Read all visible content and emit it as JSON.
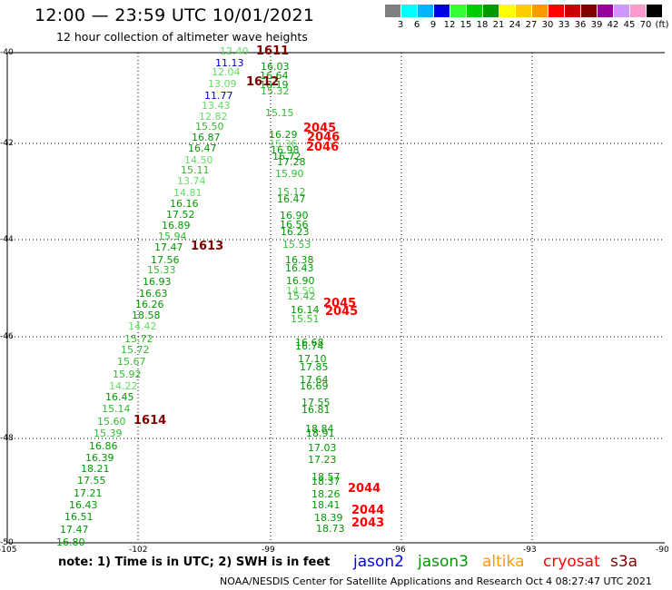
{
  "title": "12:00 — 23:59 UTC 10/01/2021",
  "subtitle": "12 hour collection of altimeter wave heights",
  "scale": {
    "colors": [
      "#808080",
      "#00ffff",
      "#00b4ff",
      "#0000e6",
      "#33ff33",
      "#00cc00",
      "#009900",
      "#ffff00",
      "#ffcc00",
      "#ff9900",
      "#ff0000",
      "#cc0000",
      "#800000",
      "#990099",
      "#cc99ff",
      "#ff99cc",
      "#000000"
    ],
    "labels": [
      "3",
      "6",
      "9",
      "12",
      "15",
      "18",
      "21",
      "24",
      "27",
      "30",
      "33",
      "36",
      "39",
      "42",
      "45",
      "70",
      "(ft)"
    ]
  },
  "grid": {
    "lat_labels": [
      "-40",
      "-42",
      "-44",
      "-46",
      "-48",
      "-50"
    ],
    "lon_labels": [
      "-105",
      "-102",
      "-99",
      "-96",
      "-93",
      "-90"
    ]
  },
  "wave_heights": [
    {
      "v": "12.40",
      "c": "#66dd66"
    },
    {
      "v": "11.13",
      "c": "#0000cc"
    },
    {
      "v": "12.04",
      "c": "#66dd66"
    },
    {
      "v": "13.09",
      "c": "#66dd66"
    },
    {
      "v": "11.77",
      "c": "#0000cc"
    },
    {
      "v": "13.43",
      "c": "#66dd66"
    },
    {
      "v": "12.82",
      "c": "#66dd66"
    },
    {
      "v": "15.50",
      "c": "#33bb33"
    },
    {
      "v": "16.87",
      "c": "#009900"
    },
    {
      "v": "16.47",
      "c": "#009900"
    },
    {
      "v": "14.50",
      "c": "#66dd66"
    },
    {
      "v": "15.11",
      "c": "#33bb33"
    },
    {
      "v": "13.74",
      "c": "#66dd66"
    },
    {
      "v": "14.81",
      "c": "#66dd66"
    },
    {
      "v": "16.16",
      "c": "#009900"
    },
    {
      "v": "17.52",
      "c": "#009900"
    },
    {
      "v": "16.89",
      "c": "#009900"
    },
    {
      "v": "15.94",
      "c": "#33bb33"
    },
    {
      "v": "17.47",
      "c": "#009900"
    },
    {
      "v": "17.56",
      "c": "#009900"
    },
    {
      "v": "15.33",
      "c": "#33bb33"
    },
    {
      "v": "16.93",
      "c": "#009900"
    },
    {
      "v": "16.63",
      "c": "#009900"
    },
    {
      "v": "16.26",
      "c": "#009900"
    },
    {
      "v": "18.58",
      "c": "#009900"
    },
    {
      "v": "14.42",
      "c": "#66dd66"
    },
    {
      "v": "15.72",
      "c": "#33bb33"
    },
    {
      "v": "15.72",
      "c": "#33bb33"
    },
    {
      "v": "15.67",
      "c": "#33bb33"
    },
    {
      "v": "15.92",
      "c": "#33bb33"
    },
    {
      "v": "14.22",
      "c": "#66dd66"
    },
    {
      "v": "16.45",
      "c": "#009900"
    },
    {
      "v": "15.14",
      "c": "#33bb33"
    },
    {
      "v": "15.60",
      "c": "#33bb33"
    },
    {
      "v": "15.39",
      "c": "#33bb33"
    },
    {
      "v": "16.86",
      "c": "#009900"
    },
    {
      "v": "16.39",
      "c": "#009900"
    },
    {
      "v": "18.21",
      "c": "#009900"
    },
    {
      "v": "17.55",
      "c": "#009900"
    },
    {
      "v": "17.21",
      "c": "#009900"
    },
    {
      "v": "16.43",
      "c": "#009900"
    },
    {
      "v": "16.51",
      "c": "#009900"
    },
    {
      "v": "17.47",
      "c": "#009900"
    },
    {
      "v": "16.80",
      "c": "#009900"
    },
    {
      "v": "16.03",
      "c": "#009900"
    },
    {
      "v": "16.64",
      "c": "#009900"
    },
    {
      "v": "16.19",
      "c": "#009900"
    },
    {
      "v": "15.32",
      "c": "#33bb33"
    },
    {
      "v": "15.15",
      "c": "#33bb33"
    },
    {
      "v": "16.29",
      "c": "#009900"
    },
    {
      "v": "15.36",
      "c": "#66dd66"
    },
    {
      "v": "16.98",
      "c": "#009900"
    },
    {
      "v": "16.72",
      "c": "#009900"
    },
    {
      "v": "17.28",
      "c": "#009900"
    },
    {
      "v": "15.90",
      "c": "#33bb33"
    },
    {
      "v": "15.12",
      "c": "#33bb33"
    },
    {
      "v": "16.47",
      "c": "#009900"
    },
    {
      "v": "16.90",
      "c": "#009900"
    },
    {
      "v": "16.56",
      "c": "#009900"
    },
    {
      "v": "16.23",
      "c": "#009900"
    },
    {
      "v": "15.53",
      "c": "#33bb33"
    },
    {
      "v": "16.38",
      "c": "#009900"
    },
    {
      "v": "16.43",
      "c": "#009900"
    },
    {
      "v": "16.90",
      "c": "#009900"
    },
    {
      "v": "14.50",
      "c": "#66dd66"
    },
    {
      "v": "15.42",
      "c": "#33bb33"
    },
    {
      "v": "16.14",
      "c": "#009900"
    },
    {
      "v": "15.51",
      "c": "#33bb33"
    },
    {
      "v": "16.68",
      "c": "#009900"
    },
    {
      "v": "16.74",
      "c": "#009900"
    },
    {
      "v": "17.10",
      "c": "#009900"
    },
    {
      "v": "17.85",
      "c": "#009900"
    },
    {
      "v": "17.64",
      "c": "#009900"
    },
    {
      "v": "16.69",
      "c": "#009900"
    },
    {
      "v": "17.55",
      "c": "#009900"
    },
    {
      "v": "16.81",
      "c": "#009900"
    },
    {
      "v": "18.84",
      "c": "#009900"
    },
    {
      "v": "18.91",
      "c": "#009900"
    },
    {
      "v": "17.03",
      "c": "#009900"
    },
    {
      "v": "17.23",
      "c": "#009900"
    },
    {
      "v": "18.57",
      "c": "#009900"
    },
    {
      "v": "18.37",
      "c": "#009900"
    },
    {
      "v": "18.26",
      "c": "#009900"
    },
    {
      "v": "18.41",
      "c": "#009900"
    },
    {
      "v": "18.39",
      "c": "#009900"
    },
    {
      "v": "18.73",
      "c": "#009900"
    }
  ],
  "pass_times": [
    {
      "t": "1611",
      "c": "#800000"
    },
    {
      "t": "1612",
      "c": "#800000"
    },
    {
      "t": "1613",
      "c": "#800000"
    },
    {
      "t": "1614",
      "c": "#800000"
    },
    {
      "t": "2045",
      "c": "#ff0000"
    },
    {
      "t": "2046",
      "c": "#ff0000"
    },
    {
      "t": "2046",
      "c": "#ff0000"
    },
    {
      "t": "2045",
      "c": "#ff0000"
    },
    {
      "t": "2045",
      "c": "#ff0000"
    },
    {
      "t": "2044",
      "c": "#ff0000"
    },
    {
      "t": "2044",
      "c": "#ff0000"
    },
    {
      "t": "2043",
      "c": "#ff0000"
    }
  ],
  "note": "note:  1) Time is in UTC;  2) SWH is in feet",
  "satellites": [
    {
      "name": "jason2",
      "color": "#0000ff"
    },
    {
      "name": "jason3",
      "color": "#009900"
    },
    {
      "name": "altika",
      "color": "#ff9900"
    },
    {
      "name": "cryosat",
      "color": "#ff0000"
    },
    {
      "name": "s3a",
      "color": "#800000"
    }
  ],
  "credit": "NOAA/NESDIS Center for Satellite Applications and Research    Oct  4 08:27:47 UTC 2021"
}
